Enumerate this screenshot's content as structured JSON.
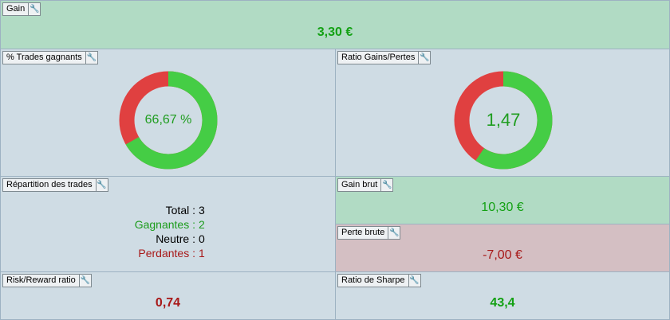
{
  "gain": {
    "label": "Gain",
    "value": "3,30 €"
  },
  "win_pct": {
    "label": "% Trades gagnants",
    "center": "66,67 %",
    "win_fraction": 0.6667,
    "win_color": "#45cd45",
    "loss_color": "#e04040"
  },
  "ratio": {
    "label": "Ratio Gains/Pertes",
    "center": "1,47",
    "win_fraction": 0.595,
    "win_color": "#45cd45",
    "loss_color": "#e04040"
  },
  "repartition": {
    "label": "Répartition des trades",
    "rows": [
      {
        "key": "Total :",
        "value": "3",
        "color": "#000000"
      },
      {
        "key": "Gagnantes :",
        "value": "2",
        "color": "#1c9c1c"
      },
      {
        "key": "Neutre :",
        "value": "0",
        "color": "#000000"
      },
      {
        "key": "Perdantes :",
        "value": "1",
        "color": "#a81818"
      }
    ]
  },
  "gain_brut": {
    "label": "Gain brut",
    "value": "10,30 €"
  },
  "perte_brute": {
    "label": "Perte brute",
    "value": "-7,00 €"
  },
  "risk_reward": {
    "label": "Risk/Reward ratio",
    "value": "0,74"
  },
  "sharpe": {
    "label": "Ratio de Sharpe",
    "value": "43,4"
  },
  "icons": {
    "settings": "wrench-icon"
  }
}
